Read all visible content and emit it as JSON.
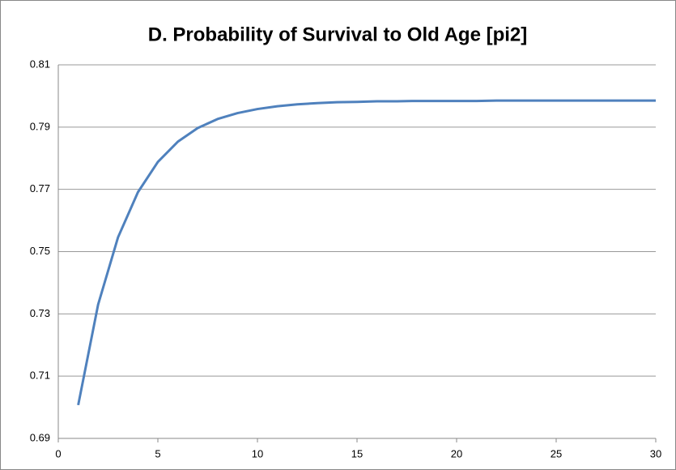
{
  "chart_data": {
    "type": "line",
    "title": "D. Probability of Survival to Old Age [pi2]",
    "x": [
      1,
      2,
      3,
      4,
      5,
      6,
      7,
      8,
      9,
      10,
      11,
      12,
      13,
      14,
      15,
      16,
      17,
      18,
      19,
      20,
      21,
      22,
      23,
      24,
      25,
      26,
      27,
      28,
      29,
      30
    ],
    "series": [
      {
        "name": "pi2",
        "color": "#4f81bd",
        "values": [
          0.7007,
          0.733,
          0.7546,
          0.7691,
          0.7788,
          0.7853,
          0.7897,
          0.7926,
          0.7945,
          0.7958,
          0.7967,
          0.7973,
          0.7977,
          0.798,
          0.7981,
          0.7983,
          0.7983,
          0.7984,
          0.7984,
          0.7984,
          0.7984,
          0.7985,
          0.7985,
          0.7985,
          0.7985,
          0.7985,
          0.7985,
          0.7985,
          0.7985,
          0.7985
        ]
      }
    ],
    "xlim": [
      0,
      30
    ],
    "xticks": [
      0,
      5,
      10,
      15,
      20,
      25,
      30
    ],
    "ylim": [
      0.69,
      0.81
    ],
    "yticks": [
      0.69,
      0.71,
      0.73,
      0.75,
      0.77,
      0.79,
      0.81
    ],
    "grid": true
  }
}
